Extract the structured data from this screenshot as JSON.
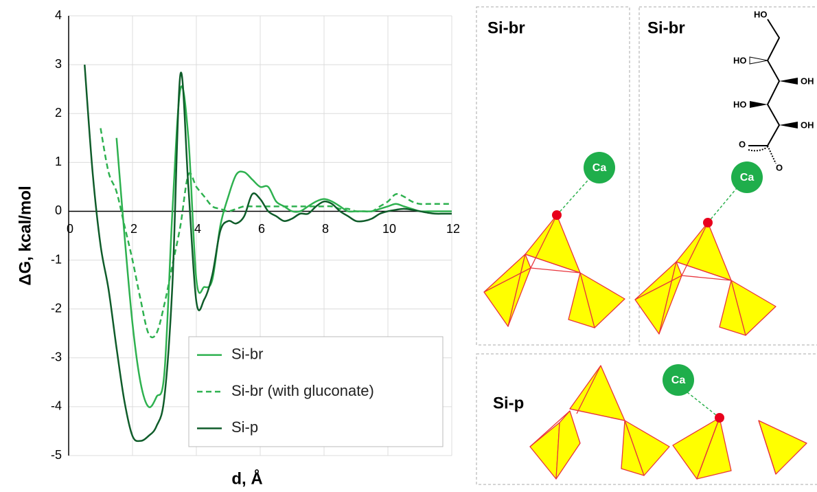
{
  "chart_data": {
    "type": "line",
    "x_label": "d, Å",
    "y_label": "ΔG, kcal/mol",
    "x": [
      0.5,
      0.75,
      1,
      1.25,
      1.5,
      1.75,
      2,
      2.25,
      2.5,
      2.75,
      3,
      3.25,
      3.5,
      3.75,
      4,
      4.25,
      4.5,
      4.75,
      5,
      5.25,
      5.5,
      5.75,
      6,
      6.25,
      6.5,
      6.75,
      7,
      7.25,
      7.5,
      7.75,
      8,
      8.25,
      8.5,
      8.75,
      9,
      9.25,
      9.5,
      9.75,
      10,
      10.25,
      10.5,
      10.75,
      11,
      11.25,
      11.5,
      11.75,
      12
    ],
    "series": [
      {
        "name": "Si-br",
        "color": "#2eb14f",
        "linestyle": "solid",
        "values": [
          null,
          null,
          null,
          null,
          1.5,
          -0.5,
          -2.3,
          -3.5,
          -4.0,
          -3.8,
          -3.3,
          0.0,
          2.5,
          1.5,
          -1.4,
          -1.55,
          -1.4,
          -0.3,
          0.3,
          0.75,
          0.8,
          0.65,
          0.5,
          0.5,
          0.2,
          0.1,
          0.0,
          0.0,
          0.1,
          0.2,
          0.25,
          0.2,
          0.1,
          0.0,
          0.0,
          0.0,
          0.0,
          0.05,
          0.1,
          0.15,
          0.1,
          0.05,
          0.0,
          0.0,
          0.0,
          0.0,
          0.0
        ]
      },
      {
        "name": "Si-br (with gluconate)",
        "color": "#2eb14f",
        "linestyle": "dashed",
        "values": [
          null,
          null,
          1.7,
          0.8,
          0.4,
          -0.3,
          -1.0,
          -1.8,
          -2.5,
          -2.5,
          -1.9,
          -1.1,
          -0.3,
          0.75,
          0.5,
          0.3,
          0.1,
          0.05,
          0.0,
          0.05,
          0.1,
          0.1,
          0.1,
          0.1,
          0.1,
          0.1,
          0.1,
          0.1,
          0.1,
          0.1,
          0.1,
          0.1,
          0.05,
          0.05,
          0.0,
          0.0,
          0.0,
          0.1,
          0.2,
          0.35,
          0.3,
          0.2,
          0.15,
          0.15,
          0.15,
          0.15,
          0.15
        ]
      },
      {
        "name": "Si-p",
        "color": "#0f5c2a",
        "linestyle": "solid",
        "values": [
          3.0,
          0.8,
          -0.7,
          -1.6,
          -2.8,
          -3.9,
          -4.6,
          -4.7,
          -4.6,
          -4.4,
          -3.8,
          -1.5,
          2.8,
          0.5,
          -1.85,
          -1.8,
          -1.3,
          -0.4,
          -0.2,
          -0.25,
          -0.1,
          0.35,
          0.25,
          0.0,
          -0.1,
          -0.2,
          -0.15,
          -0.05,
          -0.05,
          0.1,
          0.2,
          0.15,
          0.0,
          -0.1,
          -0.2,
          -0.2,
          -0.15,
          -0.05,
          0.0,
          0.03,
          0.05,
          0.03,
          0.0,
          -0.03,
          -0.05,
          -0.05,
          -0.05
        ]
      }
    ],
    "xlim": [
      0,
      12
    ],
    "xticks": [
      0,
      2,
      4,
      6,
      8,
      10,
      12
    ],
    "ylim": [
      -5,
      4
    ],
    "yticks": [
      -5,
      -4,
      -3,
      -2,
      -1,
      0,
      1,
      2,
      3,
      4
    ],
    "grid": true,
    "legend": "lower right"
  },
  "panels": [
    {
      "label": "Si-br",
      "ion": "Ca"
    },
    {
      "label": "Si-br",
      "ion": "Ca"
    },
    {
      "label": "Si-p",
      "ion": "Ca"
    }
  ],
  "gluconate_labels": [
    "HO",
    "HO",
    "OH",
    "HO",
    "OH",
    "O",
    "O"
  ]
}
